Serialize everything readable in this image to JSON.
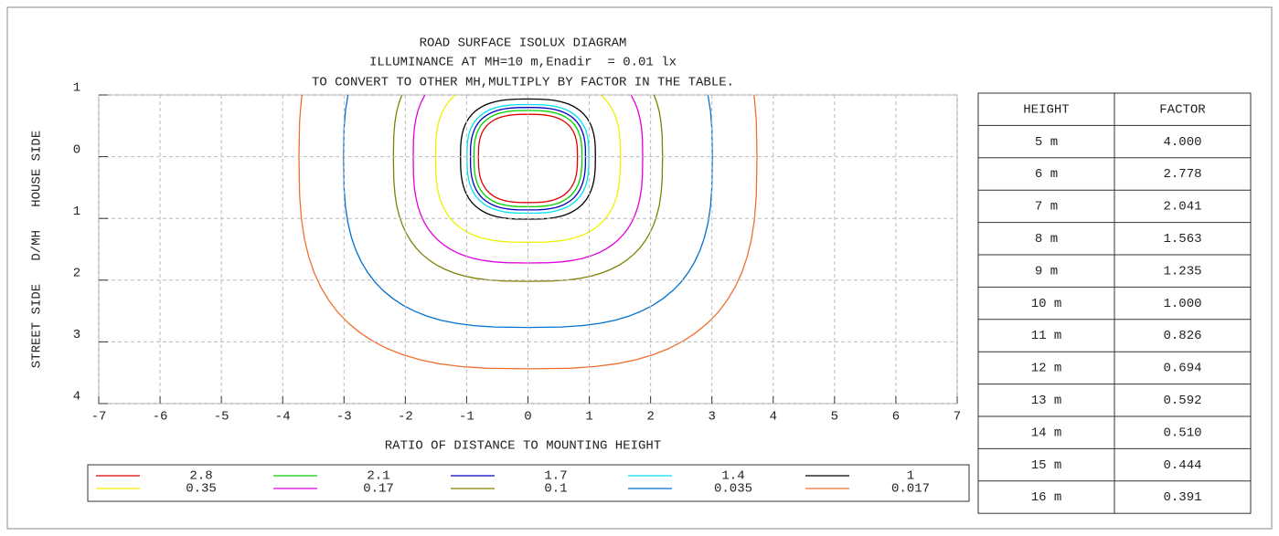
{
  "chart_data": {
    "type": "contour",
    "title": [
      "ROAD SURFACE ISOLUX DIAGRAM",
      "ILLUMINANCE AT MH=10 m,Enadir  = 0.01 lx",
      "TO CONVERT TO OTHER MH,MULTIPLY BY FACTOR IN THE TABLE."
    ],
    "xlabel": "RATIO OF DISTANCE TO MOUNTING HEIGHT",
    "ylabel": "STREET SIDE   D/MH   HOUSE SIDE",
    "xlim": [
      -7,
      7
    ],
    "ylim": [
      -1,
      4
    ],
    "xticks": [
      -7,
      -6,
      -5,
      -4,
      -3,
      -2,
      -1,
      0,
      1,
      2,
      3,
      4,
      5,
      6,
      7
    ],
    "yticks": [
      {
        "value": -1,
        "label": "1"
      },
      0,
      1,
      2,
      3,
      4
    ],
    "grid": true,
    "series": [
      {
        "name": "2.8",
        "color": "#e00000",
        "value": 2.8
      },
      {
        "name": "2.1",
        "color": "#00d000",
        "value": 2.1
      },
      {
        "name": "1.7",
        "color": "#0000c0",
        "value": 1.7
      },
      {
        "name": "1.4",
        "color": "#00e0f0",
        "value": 1.4
      },
      {
        "name": "1",
        "color": "#000000",
        "value": 1
      },
      {
        "name": "0.35",
        "color": "#f0f000",
        "value": 0.35
      },
      {
        "name": "0.17",
        "color": "#e000e0",
        "value": 0.17
      },
      {
        "name": "0.1",
        "color": "#808000",
        "value": 0.1
      },
      {
        "name": "0.035",
        "color": "#0070d0",
        "value": 0.035
      },
      {
        "name": "0.017",
        "color": "#f07030",
        "value": 0.017
      }
    ]
  },
  "table": {
    "header": [
      "HEIGHT",
      "FACTOR"
    ],
    "rows": [
      [
        "5 m",
        "4.000"
      ],
      [
        "6 m",
        "2.778"
      ],
      [
        "7 m",
        "2.041"
      ],
      [
        "8 m",
        "1.563"
      ],
      [
        "9 m",
        "1.235"
      ],
      [
        "10 m",
        "1.000"
      ],
      [
        "11 m",
        "0.826"
      ],
      [
        "12 m",
        "0.694"
      ],
      [
        "13 m",
        "0.592"
      ],
      [
        "14 m",
        "0.510"
      ],
      [
        "15 m",
        "0.444"
      ],
      [
        "16 m",
        "0.391"
      ]
    ]
  }
}
